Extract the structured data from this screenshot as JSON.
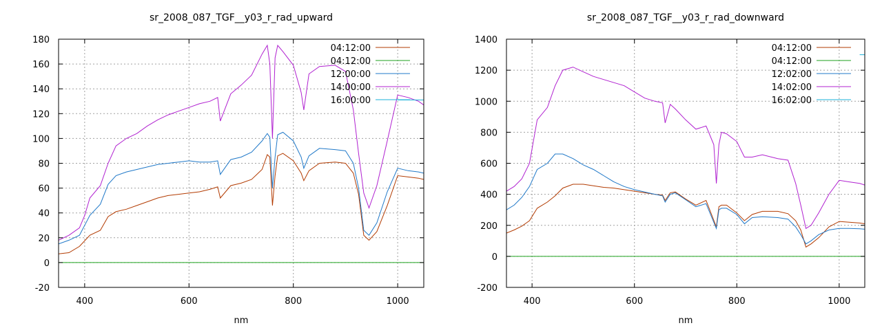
{
  "chart_data": [
    {
      "type": "line",
      "title": "sr_2008_087_TGF__y03_r_rad_upward",
      "xlabel": "nm",
      "ylabel": "",
      "xlim": [
        350,
        1050
      ],
      "ylim": [
        -20,
        180
      ],
      "x_ticks": [
        400,
        600,
        800,
        1000
      ],
      "y_ticks": [
        -20,
        0,
        20,
        40,
        60,
        80,
        100,
        120,
        140,
        160,
        180
      ],
      "grid": true,
      "legend_position": "top-right",
      "series": [
        {
          "name": "04:12:00",
          "color": "#b23a00",
          "x": [
            350,
            370,
            390,
            410,
            430,
            445,
            460,
            480,
            500,
            520,
            540,
            560,
            580,
            600,
            620,
            640,
            655,
            660,
            680,
            700,
            720,
            740,
            750,
            755,
            760,
            765,
            770,
            780,
            800,
            815,
            820,
            830,
            850,
            880,
            900,
            915,
            925,
            935,
            945,
            960,
            980,
            1000,
            1020,
            1040,
            1050
          ],
          "y": [
            7,
            8,
            13,
            22,
            26,
            37,
            41,
            43,
            46,
            49,
            52,
            54,
            55,
            56,
            57,
            59,
            61,
            52,
            62,
            64,
            67,
            75,
            87,
            85,
            46,
            70,
            86,
            88,
            82,
            72,
            66,
            74,
            80,
            81,
            80,
            72,
            55,
            22,
            18,
            25,
            46,
            70,
            69,
            68,
            67
          ]
        },
        {
          "name": "04:12:00",
          "color": "#1ca21c",
          "x": [
            350,
            1050
          ],
          "y": [
            0,
            0
          ]
        },
        {
          "name": "12:00:00",
          "color": "#1f78c8",
          "x": [
            350,
            370,
            390,
            410,
            430,
            445,
            460,
            480,
            500,
            520,
            540,
            560,
            580,
            600,
            620,
            640,
            655,
            660,
            680,
            700,
            720,
            740,
            750,
            755,
            760,
            765,
            770,
            780,
            800,
            815,
            820,
            830,
            850,
            880,
            900,
            915,
            925,
            935,
            945,
            960,
            980,
            1000,
            1020,
            1040,
            1050
          ],
          "y": [
            15,
            18,
            22,
            38,
            47,
            63,
            70,
            73,
            75,
            77,
            79,
            80,
            81,
            82,
            81,
            81,
            82,
            71,
            83,
            85,
            89,
            98,
            104,
            101,
            60,
            85,
            103,
            105,
            98,
            85,
            76,
            86,
            92,
            91,
            90,
            80,
            60,
            26,
            22,
            32,
            57,
            76,
            74,
            73,
            72
          ]
        },
        {
          "name": "14:00:00",
          "color": "#b020d0",
          "x": [
            350,
            370,
            390,
            400,
            410,
            430,
            445,
            460,
            480,
            500,
            520,
            540,
            560,
            580,
            600,
            620,
            640,
            655,
            660,
            680,
            700,
            720,
            740,
            750,
            755,
            760,
            765,
            770,
            780,
            800,
            815,
            820,
            830,
            850,
            880,
            900,
            915,
            925,
            935,
            945,
            960,
            980,
            1000,
            1020,
            1040,
            1050
          ],
          "y": [
            18,
            22,
            28,
            38,
            52,
            62,
            80,
            94,
            100,
            104,
            110,
            115,
            119,
            122,
            125,
            128,
            130,
            133,
            114,
            136,
            143,
            151,
            168,
            175,
            160,
            100,
            165,
            175,
            170,
            159,
            137,
            123,
            152,
            158,
            159,
            154,
            123,
            88,
            56,
            44,
            62,
            98,
            135,
            133,
            130,
            127
          ]
        },
        {
          "name": "16:00:00",
          "color": "#1ab0d8",
          "x": [
            1000,
            1050
          ],
          "y": [
            131,
            131
          ]
        }
      ]
    },
    {
      "type": "line",
      "title": "sr_2008_087_TGF__y03_r_rad_downward",
      "xlabel": "nm",
      "ylabel": "",
      "xlim": [
        350,
        1050
      ],
      "ylim": [
        -200,
        1400
      ],
      "x_ticks": [
        400,
        600,
        800,
        1000
      ],
      "y_ticks": [
        -200,
        0,
        200,
        400,
        600,
        800,
        1000,
        1200,
        1400
      ],
      "grid": true,
      "legend_position": "top-right",
      "series": [
        {
          "name": "04:12:00",
          "color": "#b23a00",
          "x": [
            350,
            365,
            380,
            395,
            410,
            430,
            445,
            460,
            480,
            500,
            520,
            540,
            560,
            580,
            600,
            620,
            640,
            655,
            660,
            670,
            680,
            700,
            720,
            740,
            760,
            765,
            770,
            780,
            800,
            815,
            830,
            850,
            880,
            900,
            915,
            925,
            935,
            945,
            960,
            980,
            1000,
            1020,
            1040,
            1050
          ],
          "y": [
            150,
            170,
            195,
            230,
            310,
            350,
            390,
            440,
            465,
            465,
            455,
            445,
            440,
            430,
            420,
            410,
            400,
            395,
            360,
            410,
            415,
            370,
            330,
            360,
            190,
            320,
            330,
            330,
            280,
            230,
            270,
            290,
            290,
            275,
            230,
            170,
            60,
            80,
            120,
            190,
            225,
            220,
            215,
            210
          ]
        },
        {
          "name": "04:12:00",
          "color": "#1ca21c",
          "x": [
            350,
            1050
          ],
          "y": [
            0,
            0
          ]
        },
        {
          "name": "12:02:00",
          "color": "#1f78c8",
          "x": [
            350,
            365,
            380,
            395,
            410,
            430,
            445,
            460,
            480,
            500,
            520,
            540,
            560,
            580,
            600,
            620,
            640,
            655,
            660,
            670,
            680,
            700,
            720,
            740,
            760,
            765,
            770,
            780,
            800,
            815,
            830,
            850,
            880,
            900,
            915,
            925,
            935,
            945,
            960,
            980,
            1000,
            1020,
            1040,
            1050
          ],
          "y": [
            300,
            330,
            380,
            450,
            560,
            600,
            660,
            660,
            630,
            590,
            560,
            520,
            480,
            450,
            430,
            415,
            400,
            390,
            350,
            400,
            410,
            365,
            320,
            340,
            180,
            300,
            310,
            310,
            270,
            210,
            250,
            255,
            250,
            240,
            190,
            140,
            80,
            100,
            140,
            170,
            180,
            180,
            178,
            175
          ]
        },
        {
          "name": "14:02:00",
          "color": "#b020d0",
          "x": [
            350,
            365,
            380,
            395,
            410,
            430,
            445,
            460,
            480,
            500,
            520,
            540,
            560,
            580,
            600,
            620,
            640,
            655,
            660,
            670,
            680,
            700,
            720,
            740,
            755,
            760,
            765,
            770,
            780,
            800,
            815,
            830,
            850,
            880,
            900,
            915,
            925,
            935,
            945,
            960,
            980,
            1000,
            1020,
            1040,
            1050
          ],
          "y": [
            420,
            450,
            500,
            600,
            880,
            960,
            1100,
            1200,
            1220,
            1190,
            1160,
            1140,
            1120,
            1100,
            1060,
            1020,
            1000,
            990,
            860,
            980,
            950,
            880,
            820,
            840,
            720,
            470,
            720,
            800,
            790,
            740,
            640,
            640,
            655,
            630,
            620,
            470,
            330,
            180,
            200,
            280,
            400,
            490,
            480,
            470,
            460
          ]
        },
        {
          "name": "16:02:00",
          "color": "#1ab0d8",
          "x": [
            1040,
            1050
          ],
          "y": [
            1300,
            1300
          ]
        }
      ]
    }
  ]
}
